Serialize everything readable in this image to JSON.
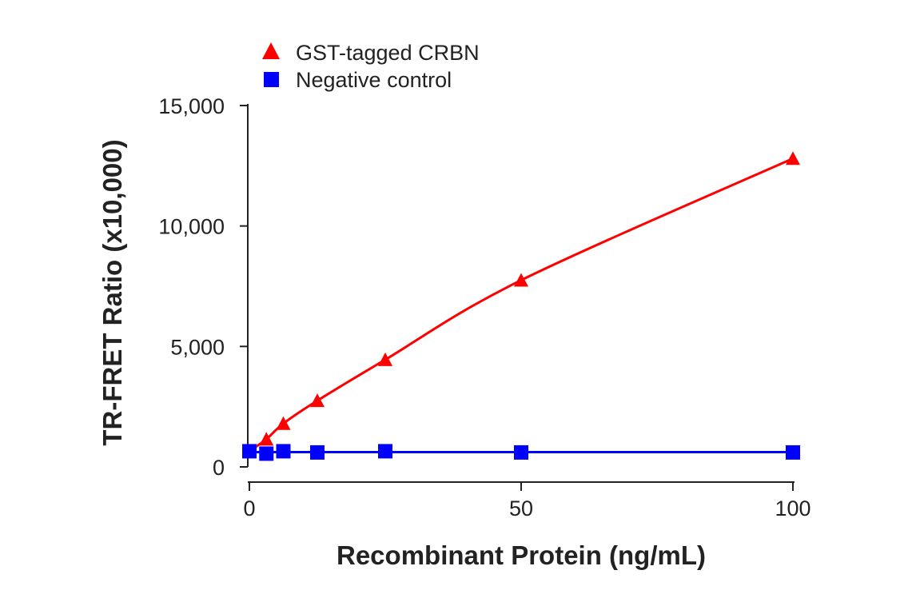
{
  "chart_data": {
    "type": "line",
    "title": "",
    "xlabel": "Recombinant Protein (ng/mL)",
    "ylabel": "TR-FRET Ratio (x10,000)",
    "xlim": [
      0,
      100
    ],
    "ylim": [
      0,
      15000
    ],
    "xticks": [
      0,
      50,
      100
    ],
    "xtick_labels": [
      "0",
      "50",
      "100"
    ],
    "yticks": [
      0,
      5000,
      10000,
      15000
    ],
    "ytick_labels": [
      "0",
      "5,000",
      "10,000",
      "15,000"
    ],
    "grid": false,
    "legend_position": "top-left",
    "series": [
      {
        "name": "GST-tagged CRBN",
        "color": "#ff0000",
        "marker": "triangle",
        "fit": "curve",
        "x": [
          0,
          3.125,
          6.25,
          12.5,
          25,
          50,
          100
        ],
        "y": [
          650,
          1150,
          1800,
          2750,
          4450,
          7750,
          12800
        ]
      },
      {
        "name": "Negative control",
        "color": "#0000ff",
        "marker": "square",
        "fit": "flat",
        "x": [
          0,
          3.125,
          6.25,
          12.5,
          25,
          50,
          100
        ],
        "y": [
          650,
          550,
          650,
          600,
          650,
          600,
          600
        ]
      }
    ]
  }
}
